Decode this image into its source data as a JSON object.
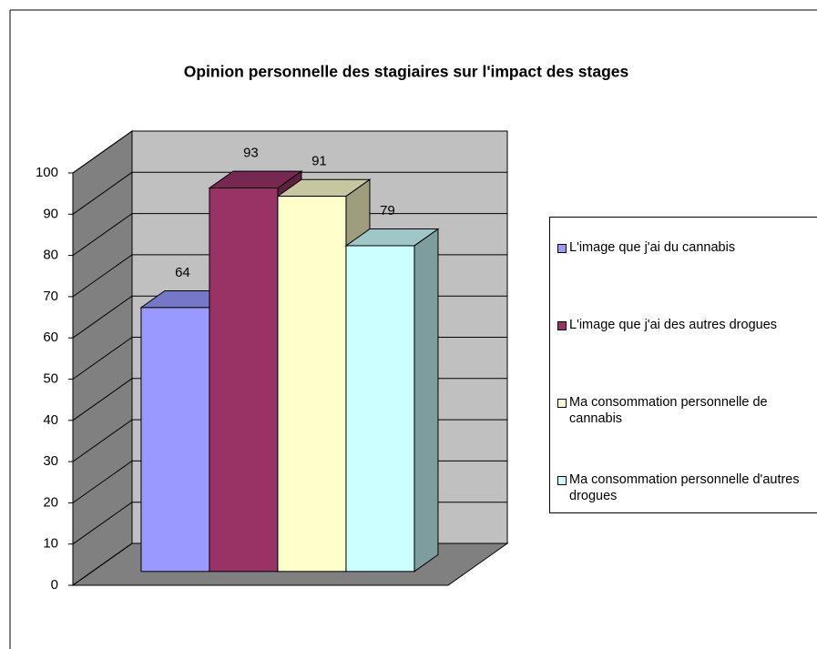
{
  "chart_data": {
    "type": "bar",
    "title": "Opinion personnelle des stagiaires sur l'impact des stages",
    "categories": [
      null
    ],
    "series": [
      {
        "name": "L'image que j'ai du cannabis",
        "color": "#9999ff",
        "values": [
          64
        ]
      },
      {
        "name": "L'image que j'ai des autres drogues",
        "color": "#993366",
        "values": [
          93
        ]
      },
      {
        "name": "Ma consommation personnelle de cannabis",
        "color": "#ffffcc",
        "values": [
          91
        ]
      },
      {
        "name": "Ma consommation personnelle d'autres drogues",
        "color": "#ccffff",
        "values": [
          79
        ]
      }
    ],
    "ylim": [
      0,
      100
    ],
    "yticks": [
      0,
      10,
      20,
      30,
      40,
      50,
      60,
      70,
      80,
      90,
      100
    ],
    "grid": true,
    "legend": "right"
  }
}
